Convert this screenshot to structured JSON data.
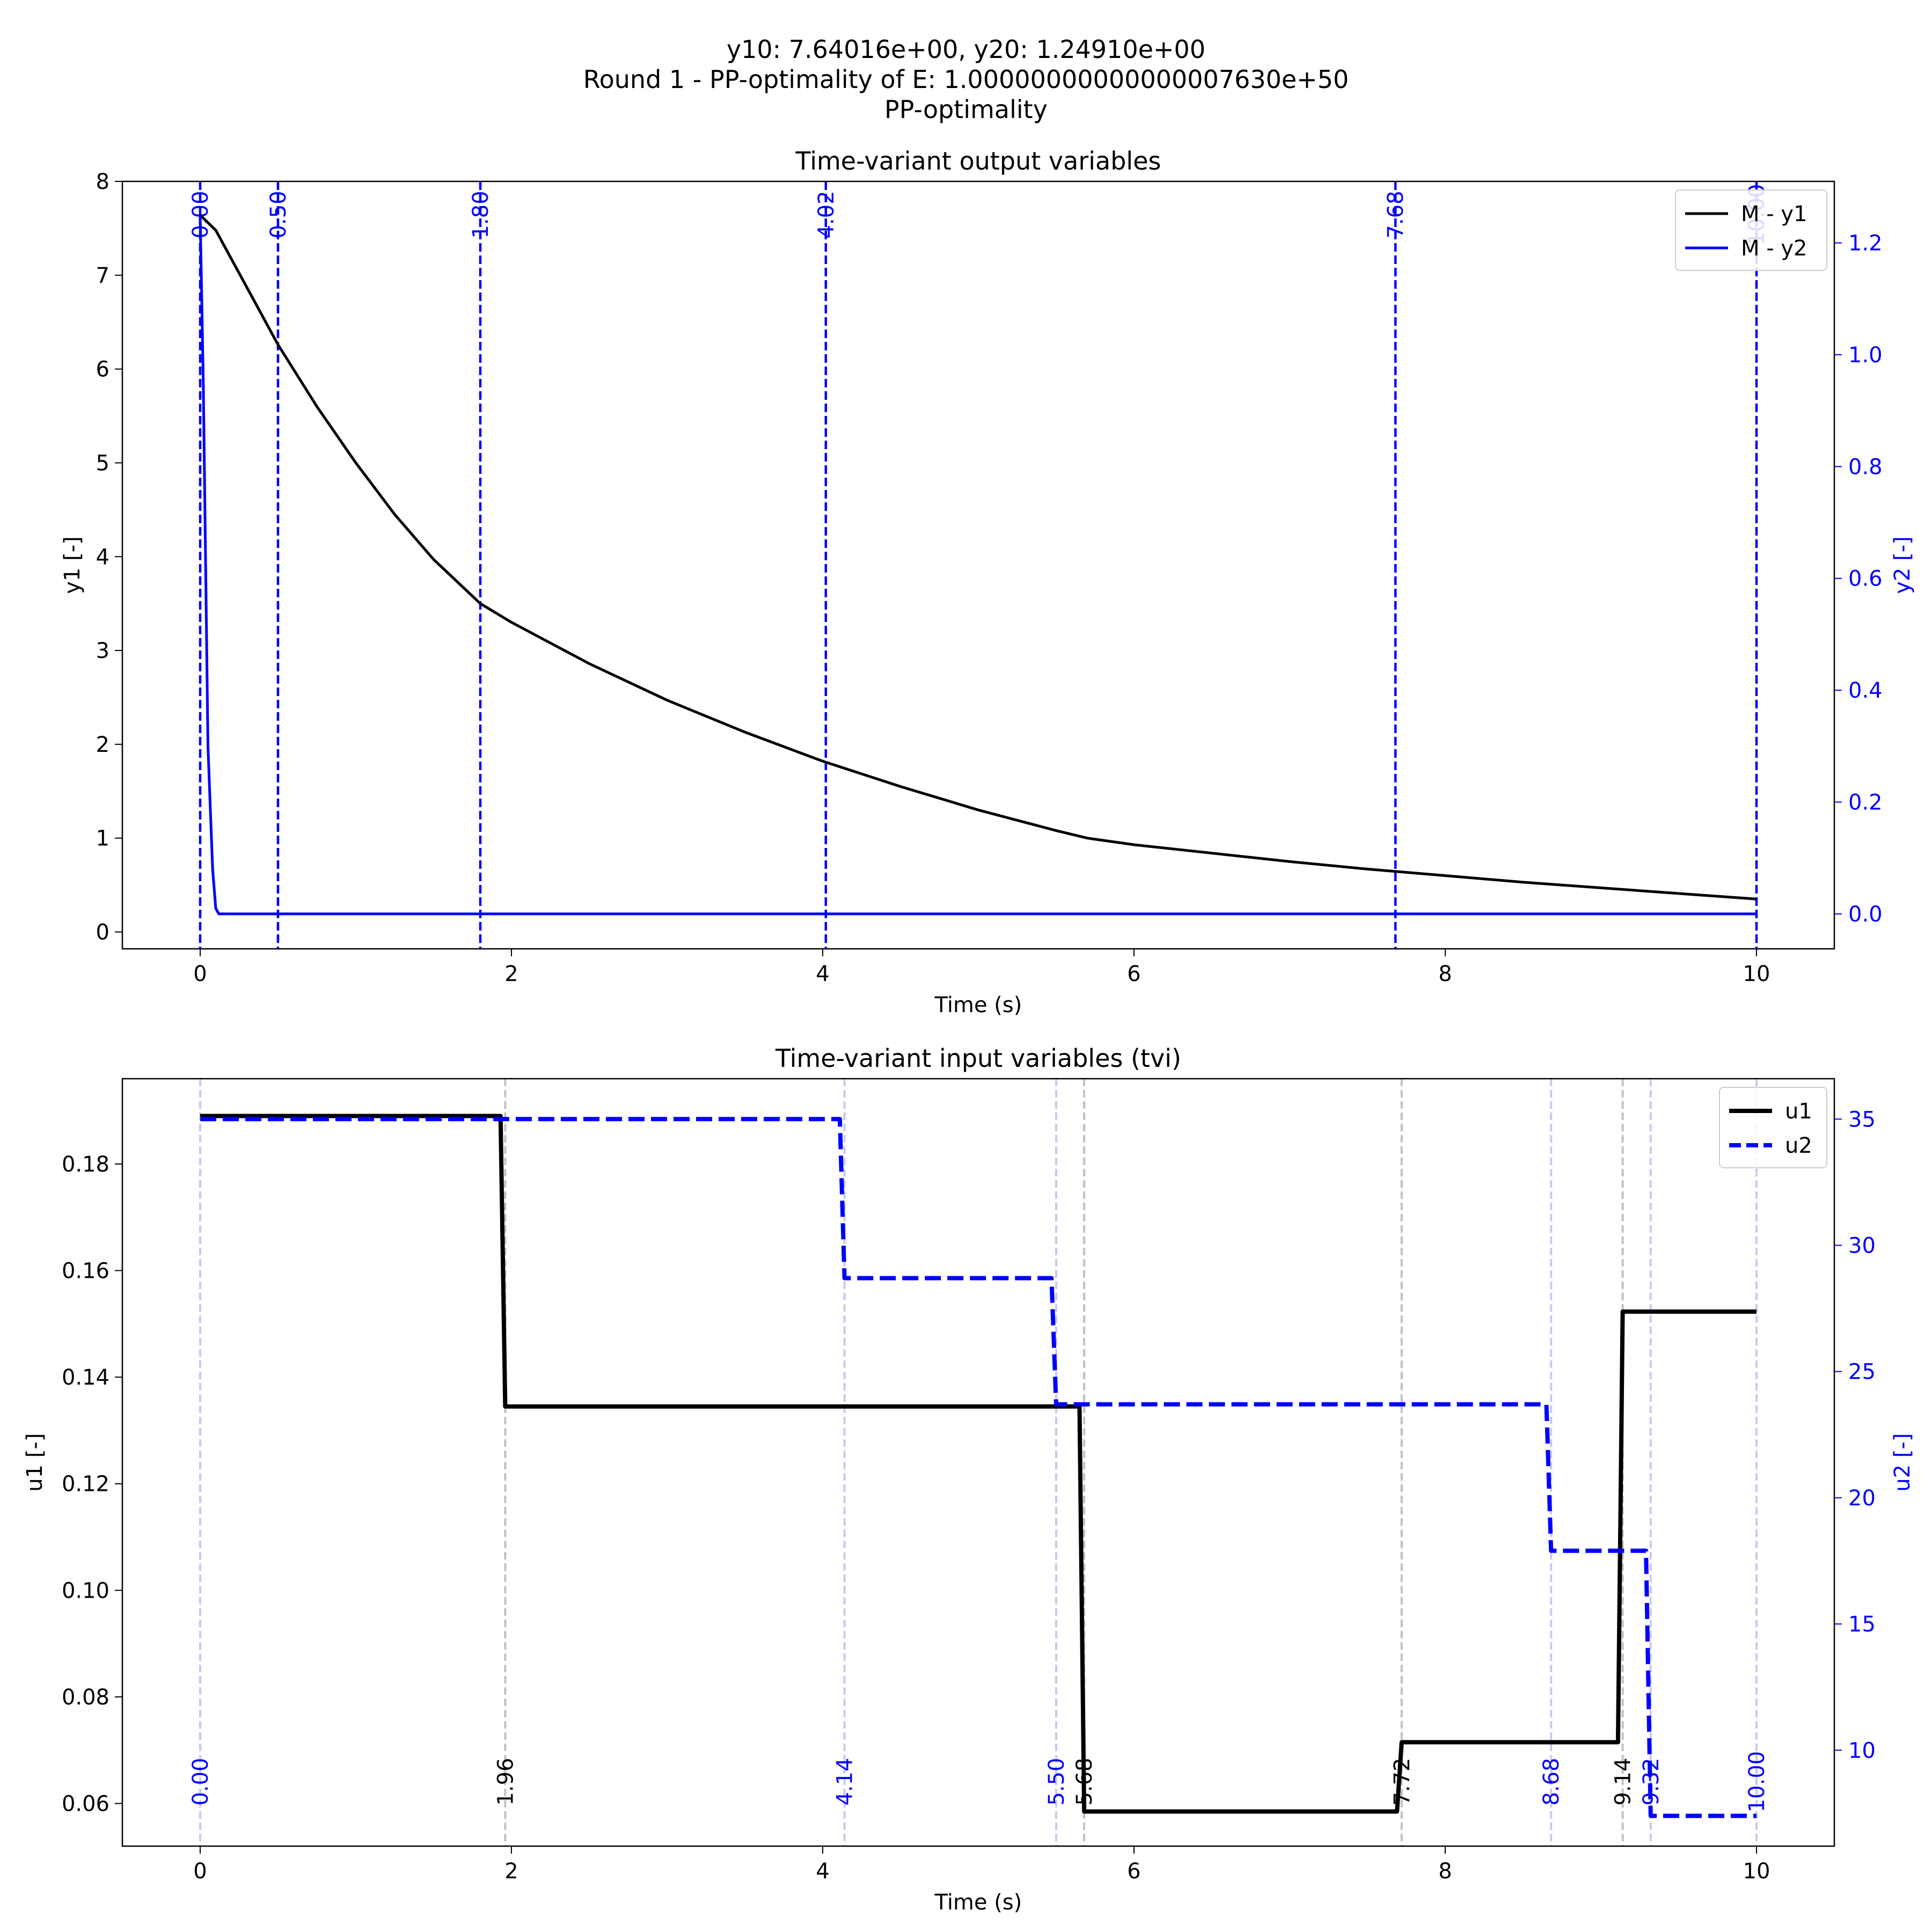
{
  "figure": {
    "title_lines": [
      "y10: 7.64016e+00, y20: 1.24910e+00",
      "Round 1 - PP-optimality of E: 1.00000000000000007630e+50",
      "PP-optimality"
    ]
  },
  "colors": {
    "black": "#000000",
    "blue": "#0000ff",
    "gray": "#c0c0c0",
    "lightblue": "#c8c8f5"
  },
  "chart_data": [
    {
      "type": "line",
      "title": "Time-variant output variables",
      "xlabel": "Time (s)",
      "ylabel_left": "y1 [-]",
      "ylabel_right": "y2 [-]",
      "xlim": [
        -0.5,
        10.5
      ],
      "ylim_left": [
        -0.18,
        8.0
      ],
      "ylim_right": [
        -0.0625,
        1.31
      ],
      "xticks": [
        0,
        2,
        4,
        6,
        8,
        10
      ],
      "yticks_left": [
        0,
        1,
        2,
        3,
        4,
        5,
        6,
        7,
        8
      ],
      "yticks_right": [
        "0.0",
        "0.2",
        "0.4",
        "0.6",
        "0.8",
        "1.0",
        "1.2"
      ],
      "legend": {
        "position": "top-right",
        "entries": [
          "M - y1",
          "M - y2"
        ]
      },
      "series": [
        {
          "name": "M - y1",
          "axis": "left",
          "color": "#000000",
          "x": [
            0,
            0.1,
            0.3,
            0.5,
            0.75,
            1.0,
            1.25,
            1.5,
            1.8,
            2.0,
            2.5,
            3.0,
            3.5,
            4.0,
            4.5,
            5.0,
            5.5,
            5.7,
            6.0,
            6.5,
            7.0,
            7.5,
            8.0,
            8.5,
            9.0,
            9.5,
            10.0
          ],
          "y": [
            7.64,
            7.48,
            6.87,
            6.26,
            5.6,
            5.0,
            4.45,
            3.97,
            3.5,
            3.3,
            2.86,
            2.47,
            2.13,
            1.82,
            1.55,
            1.3,
            1.08,
            1.0,
            0.93,
            0.84,
            0.75,
            0.67,
            0.6,
            0.53,
            0.47,
            0.41,
            0.35
          ]
        },
        {
          "name": "M - y2",
          "axis": "right",
          "color": "#0000ff",
          "x": [
            0,
            0.02,
            0.05,
            0.08,
            0.1,
            0.12,
            0.2,
            1,
            3,
            5,
            7,
            9,
            10
          ],
          "y": [
            1.249,
            0.95,
            0.3,
            0.08,
            0.01,
            0.0,
            0.0,
            0.0,
            0.0,
            0.0,
            0.0,
            0.0,
            0.0
          ]
        }
      ],
      "vlines": [
        {
          "x": 0.0,
          "label": "0.00"
        },
        {
          "x": 0.5,
          "label": "0.50"
        },
        {
          "x": 1.8,
          "label": "1.80"
        },
        {
          "x": 4.02,
          "label": "4.02"
        },
        {
          "x": 7.68,
          "label": "7.68"
        },
        {
          "x": 10.0,
          "label": "10.00"
        }
      ]
    },
    {
      "type": "line",
      "title": "Time-variant input variables (tvi)",
      "xlabel": "Time (s)",
      "ylabel_left": "u1 [-]",
      "ylabel_right": "u2 [-]",
      "xlim": [
        -0.5,
        10.5
      ],
      "ylim_left": [
        0.052,
        0.196
      ],
      "ylim_right": [
        6.2,
        36.6
      ],
      "xticks": [
        0,
        2,
        4,
        6,
        8,
        10
      ],
      "yticks_left": [
        "0.06",
        "0.08",
        "0.10",
        "0.12",
        "0.14",
        "0.16",
        "0.18"
      ],
      "yticks_right": [
        10,
        15,
        20,
        25,
        30,
        35
      ],
      "legend": {
        "position": "top-right",
        "entries": [
          "u1",
          "u2"
        ]
      },
      "series": [
        {
          "name": "u1",
          "axis": "left",
          "color": "#000000",
          "x": [
            0,
            1.93,
            1.96,
            5.65,
            5.68,
            7.69,
            7.72,
            9.11,
            9.14,
            10.0
          ],
          "y": [
            0.189,
            0.189,
            0.1345,
            0.1345,
            0.0585,
            0.0585,
            0.0715,
            0.0715,
            0.1523,
            0.1523
          ]
        },
        {
          "name": "u2",
          "axis": "right",
          "color": "#0000ff",
          "x": [
            0,
            4.11,
            4.14,
            5.47,
            5.5,
            8.65,
            8.68,
            9.29,
            9.32,
            10.0
          ],
          "y": [
            35.0,
            35.0,
            28.7,
            28.7,
            23.7,
            23.7,
            17.9,
            17.9,
            7.4,
            7.4
          ]
        }
      ],
      "vlines_u1": [
        {
          "x": 1.96,
          "label": "1.96"
        },
        {
          "x": 5.68,
          "label": "5.68"
        },
        {
          "x": 7.72,
          "label": "7.72"
        },
        {
          "x": 9.14,
          "label": "9.14"
        }
      ],
      "vlines_u2": [
        {
          "x": 0.0,
          "label": "0.00"
        },
        {
          "x": 4.14,
          "label": "4.14"
        },
        {
          "x": 5.5,
          "label": "5.50"
        },
        {
          "x": 8.68,
          "label": "8.68"
        },
        {
          "x": 9.32,
          "label": "9.32"
        },
        {
          "x": 10.0,
          "label": "10.00"
        }
      ]
    }
  ]
}
